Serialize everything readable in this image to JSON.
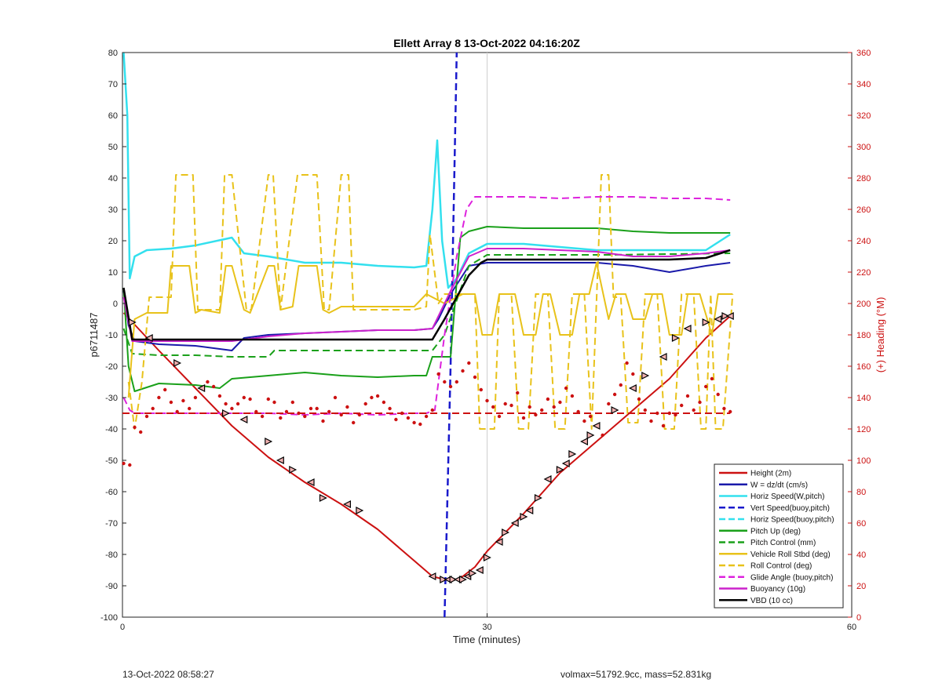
{
  "chart_data": {
    "type": "line",
    "title": "Ellett Array 8 13-Oct-2022 04:16:20Z",
    "xlabel": "Time (minutes)",
    "ylabel": "p6711487",
    "ylabel_right": "(+) Heading (°M)",
    "xlim": [
      0,
      60
    ],
    "ylim": [
      -100,
      80
    ],
    "ylim_right": [
      0,
      360
    ],
    "xticks": [
      "0",
      "30",
      "60"
    ],
    "yticks": [
      "80",
      "70",
      "60",
      "50",
      "40",
      "30",
      "20",
      "10",
      "0",
      "-10",
      "-20",
      "-30",
      "-40",
      "-50",
      "-60",
      "-70",
      "-80",
      "-90",
      "-100"
    ],
    "yticks_right": [
      "360",
      "340",
      "320",
      "300",
      "280",
      "260",
      "240",
      "220",
      "200",
      "180",
      "160",
      "140",
      "120",
      "100",
      "80",
      "60",
      "40",
      "20",
      "0"
    ],
    "grid": "x only at 30",
    "legend_position": "bottom-right",
    "legend": [
      {
        "label": "Height (2m)",
        "color": "#cc1111",
        "dash": "solid"
      },
      {
        "label": "W = dz/dt (cm/s)",
        "color": "#1a1aaa",
        "dash": "solid"
      },
      {
        "label": "Horiz Speed(W,pitch)",
        "color": "#33e0ee",
        "dash": "solid"
      },
      {
        "label": "Vert Speed(buoy,pitch)",
        "color": "#1a1acc",
        "dash": "dashed"
      },
      {
        "label": "Horiz Speed(buoy,pitch)",
        "color": "#33e0ee",
        "dash": "dashed"
      },
      {
        "label": "Pitch Up (deg)",
        "color": "#1aa01a",
        "dash": "solid"
      },
      {
        "label": "Pitch Control (mm)",
        "color": "#1aa01a",
        "dash": "dashed"
      },
      {
        "label": "Vehicle Roll Stbd (deg)",
        "color": "#e8c21a",
        "dash": "solid"
      },
      {
        "label": "Roll Control (deg)",
        "color": "#e8c21a",
        "dash": "dashed"
      },
      {
        "label": "Glide Angle (buoy,pitch)",
        "color": "#dd22dd",
        "dash": "dashed"
      },
      {
        "label": "Buoyancy (10g)",
        "color": "#cc22cc",
        "dash": "solid"
      },
      {
        "label": "VBD (10 cc)",
        "color": "#000000",
        "dash": "solid"
      }
    ],
    "series": [
      {
        "name": "Height (2m)",
        "color": "#cc1111",
        "dash": "solid",
        "width": 2,
        "x": [
          0.1,
          3,
          6,
          9,
          12,
          15,
          18,
          21,
          24,
          25.5,
          26.5,
          27.5,
          28,
          29,
          30,
          33,
          36,
          39,
          42,
          45,
          48,
          50
        ],
        "y": [
          -3,
          -15,
          -27,
          -39,
          -49,
          -57,
          -64,
          -72,
          -82,
          -87,
          -88,
          -88,
          -87,
          -84,
          -79,
          -67,
          -54,
          -44,
          -34,
          -24,
          -11,
          -4
        ]
      },
      {
        "name": "W = dz/dt (cm/s)",
        "color": "#1a1aaa",
        "dash": "solid",
        "width": 2,
        "x": [
          0.1,
          0.5,
          1,
          3,
          6,
          9,
          10,
          12,
          15,
          18,
          21,
          24,
          25.5,
          26,
          27,
          28.5,
          30,
          33,
          36,
          39,
          42,
          45,
          48,
          50
        ],
        "y": [
          4,
          -7,
          -12,
          -13,
          -13.5,
          -15,
          -11,
          -10,
          -9.5,
          -9,
          -8.5,
          -8.5,
          -8,
          -5,
          3,
          12,
          13,
          13,
          13,
          13,
          12,
          10,
          12,
          13
        ]
      },
      {
        "name": "Horiz Speed(W,pitch)",
        "color": "#33e0ee",
        "dash": "solid",
        "width": 2.5,
        "x": [
          0.1,
          0.4,
          0.6,
          1,
          2,
          4,
          6,
          9,
          10,
          12,
          15,
          18,
          21,
          24,
          25,
          25.5,
          25.9,
          26.3,
          26.8,
          27.5,
          28.5,
          30,
          33,
          36,
          39,
          42,
          45,
          48,
          50
        ],
        "y": [
          80,
          60,
          8,
          15,
          17,
          17.5,
          18.5,
          21,
          16,
          15,
          13,
          13,
          12,
          11.5,
          12,
          30,
          52,
          20,
          5,
          8,
          16,
          19,
          19,
          18,
          17,
          17,
          17,
          17,
          22
        ]
      },
      {
        "name": "Vert Speed(buoy,pitch)",
        "color": "#1a1acc",
        "dash": "dashed",
        "width": 2.5,
        "x": [
          26.5,
          27.0,
          27.5
        ],
        "y": [
          -100,
          -20,
          80
        ]
      },
      {
        "name": "Pitch Up (deg)",
        "color": "#1aa01a",
        "dash": "solid",
        "width": 2,
        "x": [
          0.1,
          0.5,
          1,
          3,
          6,
          8,
          9,
          12,
          15,
          18,
          21,
          24,
          25,
          25.5,
          27,
          27.8,
          28.5,
          30,
          33,
          36,
          39,
          42,
          45,
          48,
          50
        ],
        "y": [
          5,
          -20,
          -28,
          -25.5,
          -26,
          -27,
          -24,
          -23,
          -22,
          -23,
          -23.5,
          -23,
          -23,
          -17,
          -17,
          21,
          23,
          24.5,
          24,
          24,
          24,
          23,
          22.5,
          22.5,
          22.5
        ]
      },
      {
        "name": "Pitch Control (mm)",
        "color": "#1aa01a",
        "dash": "dashed",
        "width": 2,
        "x": [
          0.1,
          0.8,
          3,
          6,
          9,
          12,
          12.5,
          15,
          18,
          21,
          24,
          25.5,
          26.5,
          28.5,
          30,
          40,
          50
        ],
        "y": [
          -8,
          -16,
          -16.5,
          -16.5,
          -17,
          -17,
          -15,
          -15,
          -15,
          -15,
          -15,
          -15,
          -10,
          12,
          15.5,
          15.5,
          16
        ]
      },
      {
        "name": "Vehicle Roll Stbd (deg)",
        "color": "#e8c21a",
        "dash": "solid",
        "width": 2,
        "x": [
          0.5,
          1,
          2,
          3,
          3.7,
          4,
          5.5,
          6,
          6.5,
          8,
          8.5,
          9,
          10,
          10.5,
          12,
          12.5,
          13,
          14,
          14.5,
          16,
          16.5,
          17,
          18,
          18.5,
          21,
          24,
          25,
          26.5,
          28,
          29,
          29.6,
          30.4,
          31,
          32.3,
          33,
          34,
          34.6,
          35.2,
          36,
          37,
          37.6,
          38.4,
          39,
          40,
          40.6,
          41.4,
          42,
          43,
          43.6,
          44.4,
          45,
          46,
          46.5,
          47.5,
          48.5,
          49,
          49.6,
          50.2
        ],
        "y": [
          -30,
          -5,
          -3,
          -3,
          -3,
          12,
          12,
          -3,
          -2,
          -3,
          12,
          12,
          -2,
          -3,
          12,
          12,
          -2,
          -1,
          12,
          12,
          -2,
          -3,
          -1,
          -1,
          -1,
          -1,
          3,
          0,
          3,
          3,
          -10,
          -10,
          3,
          3,
          -10,
          -10,
          3,
          3,
          -10,
          -10,
          3,
          3,
          13,
          -5,
          3,
          3,
          -5,
          -5,
          3,
          3,
          -10,
          -10,
          3,
          3,
          -10,
          3,
          3,
          3
        ]
      },
      {
        "name": "Roll Control (deg)",
        "color": "#e8c21a",
        "dash": "dashed",
        "width": 2,
        "x": [
          0.5,
          1,
          1.6,
          2.2,
          3,
          4,
          4.4,
          4.8,
          5.8,
          6.2,
          8,
          8.4,
          9,
          10.2,
          10.6,
          12,
          12.4,
          13,
          14.4,
          15,
          16,
          16.6,
          17,
          18,
          18.6,
          19,
          21,
          24,
          25,
          25.3,
          26,
          26.5,
          28,
          29,
          29.4,
          30.6,
          31,
          32,
          32.6,
          33.4,
          34,
          35,
          35.6,
          36.4,
          37,
          38,
          38.6,
          39.4,
          40,
          40.4,
          41,
          41.6,
          42.4,
          43,
          44,
          44.6,
          45.4,
          46,
          47,
          47.6,
          48,
          48.4,
          48.8,
          49.4,
          50.2
        ],
        "y": [
          -25,
          -40,
          -25,
          2,
          2,
          2,
          41,
          41,
          41,
          -2,
          -2,
          41,
          41,
          -2,
          -2,
          41,
          41,
          -2,
          41,
          41,
          41,
          -2,
          -2,
          41,
          41,
          -2,
          -2,
          -2,
          -1,
          22,
          0,
          3,
          3,
          3,
          -40,
          -40,
          3,
          3,
          -40,
          -40,
          3,
          3,
          -40,
          -40,
          3,
          3,
          -40,
          41,
          41,
          2,
          2,
          -38,
          -38,
          3,
          3,
          -40,
          -40,
          3,
          3,
          -40,
          -40,
          3,
          -40,
          -40,
          3
        ]
      },
      {
        "name": "Glide Angle (buoy,pitch)",
        "color": "#dd22dd",
        "dash": "dashed",
        "width": 2,
        "x": [
          0.1,
          0.6,
          1,
          3,
          6,
          9,
          12,
          15,
          18,
          21,
          24,
          25,
          25.7,
          26.5,
          27.5,
          28.3,
          29,
          30,
          33,
          36,
          39,
          42,
          45,
          48,
          50
        ],
        "y": [
          -30,
          -34,
          -35,
          -35,
          -35,
          -35,
          -35,
          -35.5,
          -35,
          -35.5,
          -35,
          -35,
          -34,
          -10,
          15,
          30,
          34,
          34,
          34,
          33.5,
          34,
          34,
          33.5,
          33.5,
          33
        ]
      },
      {
        "name": "Buoyancy (10g)",
        "color": "#cc22cc",
        "dash": "solid",
        "width": 2,
        "x": [
          0.1,
          0.8,
          3,
          6,
          9,
          12,
          15,
          18,
          21,
          24,
          25.5,
          26,
          27,
          28.5,
          30,
          33,
          36,
          39,
          42,
          45,
          48,
          50
        ],
        "y": [
          2,
          -12,
          -12,
          -12,
          -12,
          -10.5,
          -9.5,
          -9,
          -8.5,
          -8.5,
          -8,
          -4,
          4,
          15,
          17.5,
          17.5,
          17,
          16.5,
          15,
          15,
          16,
          17
        ]
      },
      {
        "name": "VBD (10 cc)",
        "color": "#000000",
        "dash": "solid",
        "width": 2.5,
        "x": [
          0.1,
          0.8,
          3,
          6,
          9,
          12,
          15,
          18,
          21,
          24,
          25.5,
          26.5,
          27.5,
          28.5,
          29.5,
          30,
          33,
          36,
          39,
          42,
          45,
          48,
          50
        ],
        "y": [
          5,
          -11.5,
          -11.5,
          -11.5,
          -11.5,
          -11.5,
          -11.5,
          -11.5,
          -11.5,
          -11.5,
          -11.5,
          -5,
          2,
          9,
          13,
          14,
          14,
          14,
          14,
          14,
          14,
          14.5,
          17
        ]
      },
      {
        "name": "Heading",
        "axis": "right",
        "color": "#cc1111",
        "dash": "dashed",
        "width": 2,
        "x": [
          0,
          50
        ],
        "y": [
          130,
          130
        ]
      },
      {
        "name": "Heading samples",
        "axis": "right",
        "color": "#cc1111",
        "dash": "dots",
        "width": 0,
        "x": [
          0.1,
          0.6,
          1.0,
          1.5,
          2.0,
          2.5,
          3.0,
          3.5,
          4.0,
          4.5,
          5.0,
          5.5,
          6.0,
          6.5,
          7.0,
          7.5,
          8.0,
          8.5,
          9.0,
          9.5,
          10.0,
          10.5,
          11.0,
          11.5,
          12.0,
          12.5,
          13.0,
          13.5,
          14.0,
          14.5,
          15.0,
          15.5,
          16.0,
          16.5,
          17.0,
          17.5,
          18.0,
          18.5,
          19.0,
          19.5,
          20.0,
          20.5,
          21.0,
          21.5,
          22.0,
          22.5,
          23.0,
          23.5,
          24.0,
          24.5,
          25.0,
          25.5,
          26.0,
          26.5,
          27.0,
          27.5,
          28.0,
          28.5,
          29.0,
          29.5,
          30.0,
          30.5,
          31.0,
          31.5,
          32.0,
          32.5,
          33.0,
          33.5,
          34.0,
          34.5,
          35.0,
          35.5,
          36.0,
          36.5,
          37.0,
          37.5,
          38.0,
          38.5,
          39.0,
          39.5,
          40.0,
          40.5,
          41.0,
          41.5,
          42.0,
          42.5,
          43.0,
          43.5,
          44.0,
          44.5,
          45.0,
          45.5,
          46.0,
          46.5,
          47.0,
          47.5,
          48.0,
          48.5,
          49.0,
          49.5,
          50.0
        ],
        "y": [
          98,
          97,
          121,
          118,
          128,
          133,
          140,
          145,
          137,
          131,
          138,
          133,
          140,
          146,
          150,
          147,
          141,
          136,
          133,
          136,
          140,
          139,
          131,
          128,
          139,
          137,
          127,
          131,
          137,
          130,
          128,
          133,
          133,
          125,
          131,
          140,
          129,
          134,
          124,
          129,
          136,
          140,
          141,
          137,
          133,
          126,
          130,
          127,
          124,
          123,
          128,
          132,
          155,
          150,
          147,
          150,
          157,
          162,
          153,
          145,
          138,
          134,
          128,
          136,
          135,
          143,
          127,
          134,
          129,
          132,
          139,
          134,
          137,
          146,
          141,
          131,
          125,
          128,
          122,
          116,
          136,
          142,
          148,
          162,
          155,
          139,
          132,
          125,
          130,
          122,
          130,
          129,
          135,
          141,
          132,
          137,
          147,
          152,
          142,
          133,
          131
        ]
      },
      {
        "name": "Height markers",
        "color": "#000000",
        "dash": "markers",
        "width": 0,
        "x": [
          0.8,
          2.2,
          4.5,
          6.5,
          8.5,
          10,
          12,
          13,
          14,
          15.5,
          16.5,
          18.5,
          19.5,
          25.5,
          26.4,
          26.8,
          27.2,
          27.6,
          28.0,
          28.4,
          28.8,
          29.4,
          30.0,
          31.0,
          31.5,
          32.3,
          33.0,
          33.5,
          34.2,
          35.0,
          36.0,
          36.5,
          37.0,
          38.0,
          38.5,
          39.0,
          40.5,
          42.0,
          43.0,
          44.5,
          45.5,
          46.5,
          48.0,
          49.0,
          49.6,
          50.0
        ],
        "y": [
          -6,
          -11,
          -19,
          -27,
          -35,
          -37,
          -44,
          -50,
          -53,
          -57,
          -62,
          -64,
          -66,
          -87,
          -88,
          -88,
          -88,
          -88,
          -88,
          -87,
          -86,
          -85,
          -81,
          -76,
          -73,
          -70,
          -68,
          -66,
          -62,
          -56,
          -53,
          -51,
          -48,
          -44,
          -42,
          -39,
          -34,
          -27,
          -23,
          -17,
          -11,
          -8,
          -6,
          -5,
          -4,
          -4
        ]
      }
    ]
  },
  "footer": {
    "date": "13-Oct-2022 08:58:27",
    "info": "volmax=51792.9cc, mass=52.831kg"
  }
}
